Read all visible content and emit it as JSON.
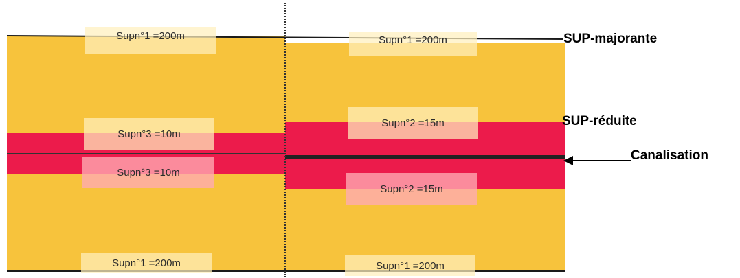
{
  "diagram": {
    "labels": {
      "top_left": "Supn°1 =200m",
      "top_right": "Supn°1 =200m",
      "mid_left_upper": "Supn°3 =10m",
      "mid_left_lower": "Supn°3 =10m",
      "mid_right_upper": "Supn°2 =15m",
      "mid_right_lower": "Supn°2 =15m",
      "bottom_left": "Supn°1 =200m",
      "bottom_right": "Supn°1 =200m"
    },
    "side_labels": {
      "sup_majorante": "SUP-majorante",
      "sup_reduite": "SUP-réduite",
      "canalisation": "Canalisation"
    },
    "colors": {
      "sup_majorante_zone": "#f7c33c",
      "sup_reduite_zone": "#ec1b4b",
      "pipeline": "#1a1a1a"
    }
  }
}
